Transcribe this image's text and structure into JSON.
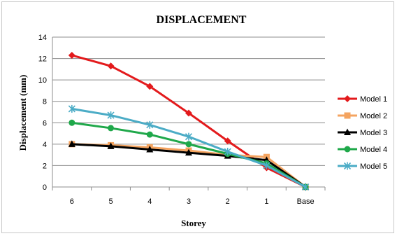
{
  "chart_data": {
    "type": "line",
    "title": "DISPLACEMENT",
    "xlabel": "Storey",
    "ylabel": "Displacement (mm)",
    "categories": [
      "6",
      "5",
      "4",
      "3",
      "2",
      "1",
      "Base"
    ],
    "ylim": [
      0,
      14
    ],
    "yticks": [
      0,
      2,
      4,
      6,
      8,
      10,
      12,
      14
    ],
    "grid": true,
    "legend_position": "right",
    "series": [
      {
        "name": "Model 1",
        "color": "#e31a1c",
        "marker": "diamond",
        "values": [
          12.3,
          11.3,
          9.4,
          6.9,
          4.3,
          1.8,
          0
        ]
      },
      {
        "name": "Model 2",
        "color": "#f4a460",
        "marker": "square",
        "values": [
          4.0,
          3.9,
          3.7,
          3.4,
          3.0,
          2.8,
          0
        ]
      },
      {
        "name": "Model 3",
        "color": "#000000",
        "marker": "triangle",
        "values": [
          4.0,
          3.8,
          3.5,
          3.2,
          2.9,
          2.5,
          0
        ]
      },
      {
        "name": "Model 4",
        "color": "#1fa84a",
        "marker": "circle",
        "values": [
          6.0,
          5.5,
          4.9,
          4.0,
          3.1,
          2.2,
          0
        ]
      },
      {
        "name": "Model 5",
        "color": "#4bacc6",
        "marker": "star",
        "values": [
          7.3,
          6.7,
          5.8,
          4.7,
          3.3,
          2.0,
          0
        ]
      }
    ]
  }
}
